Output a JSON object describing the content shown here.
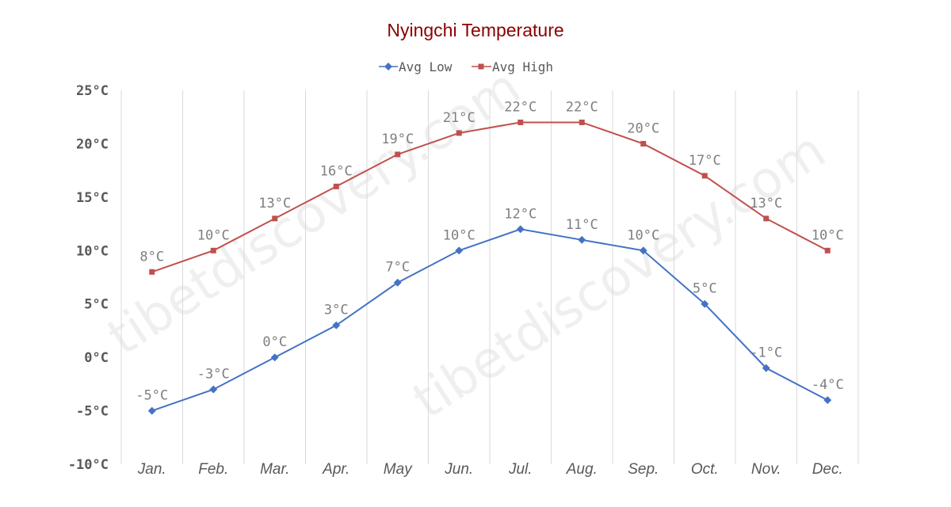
{
  "chart_data": {
    "type": "line",
    "title": "Nyingchi Temperature",
    "categories": [
      "Jan.",
      "Feb.",
      "Mar.",
      "Apr.",
      "May",
      "Jun.",
      "Jul.",
      "Aug.",
      "Sep.",
      "Oct.",
      "Nov.",
      "Dec."
    ],
    "series": [
      {
        "name": "Avg Low",
        "color": "#4472c4",
        "marker": "diamond",
        "values": [
          -5,
          -3,
          0,
          3,
          7,
          10,
          12,
          11,
          10,
          5,
          -1,
          -4
        ],
        "labels": [
          "-5°C",
          "-3°C",
          "0°C",
          "3°C",
          "7°C",
          "10°C",
          "12°C",
          "11°C",
          "10°C",
          "5°C",
          "-1°C",
          "-4°C"
        ]
      },
      {
        "name": "Avg High",
        "color": "#c0504d",
        "marker": "square",
        "values": [
          8,
          10,
          13,
          16,
          19,
          21,
          22,
          22,
          20,
          17,
          13,
          10
        ],
        "labels": [
          "8°C",
          "10°C",
          "13°C",
          "16°C",
          "19°C",
          "21°C",
          "22°C",
          "22°C",
          "20°C",
          "17°C",
          "13°C",
          "10°C"
        ]
      }
    ],
    "ylim": [
      -10,
      25
    ],
    "yticks": [
      25,
      20,
      15,
      10,
      5,
      0,
      -5,
      -10
    ],
    "ytick_labels": [
      "25°C",
      "20°C",
      "15°C",
      "10°C",
      "5°C",
      "0°C",
      "-5°C",
      "-10°C"
    ],
    "xlabel": "",
    "ylabel": "",
    "grid": "vertical",
    "legend_position": "top-center",
    "title_color": "#8b0000",
    "watermark": "tibetdiscovery.com"
  }
}
